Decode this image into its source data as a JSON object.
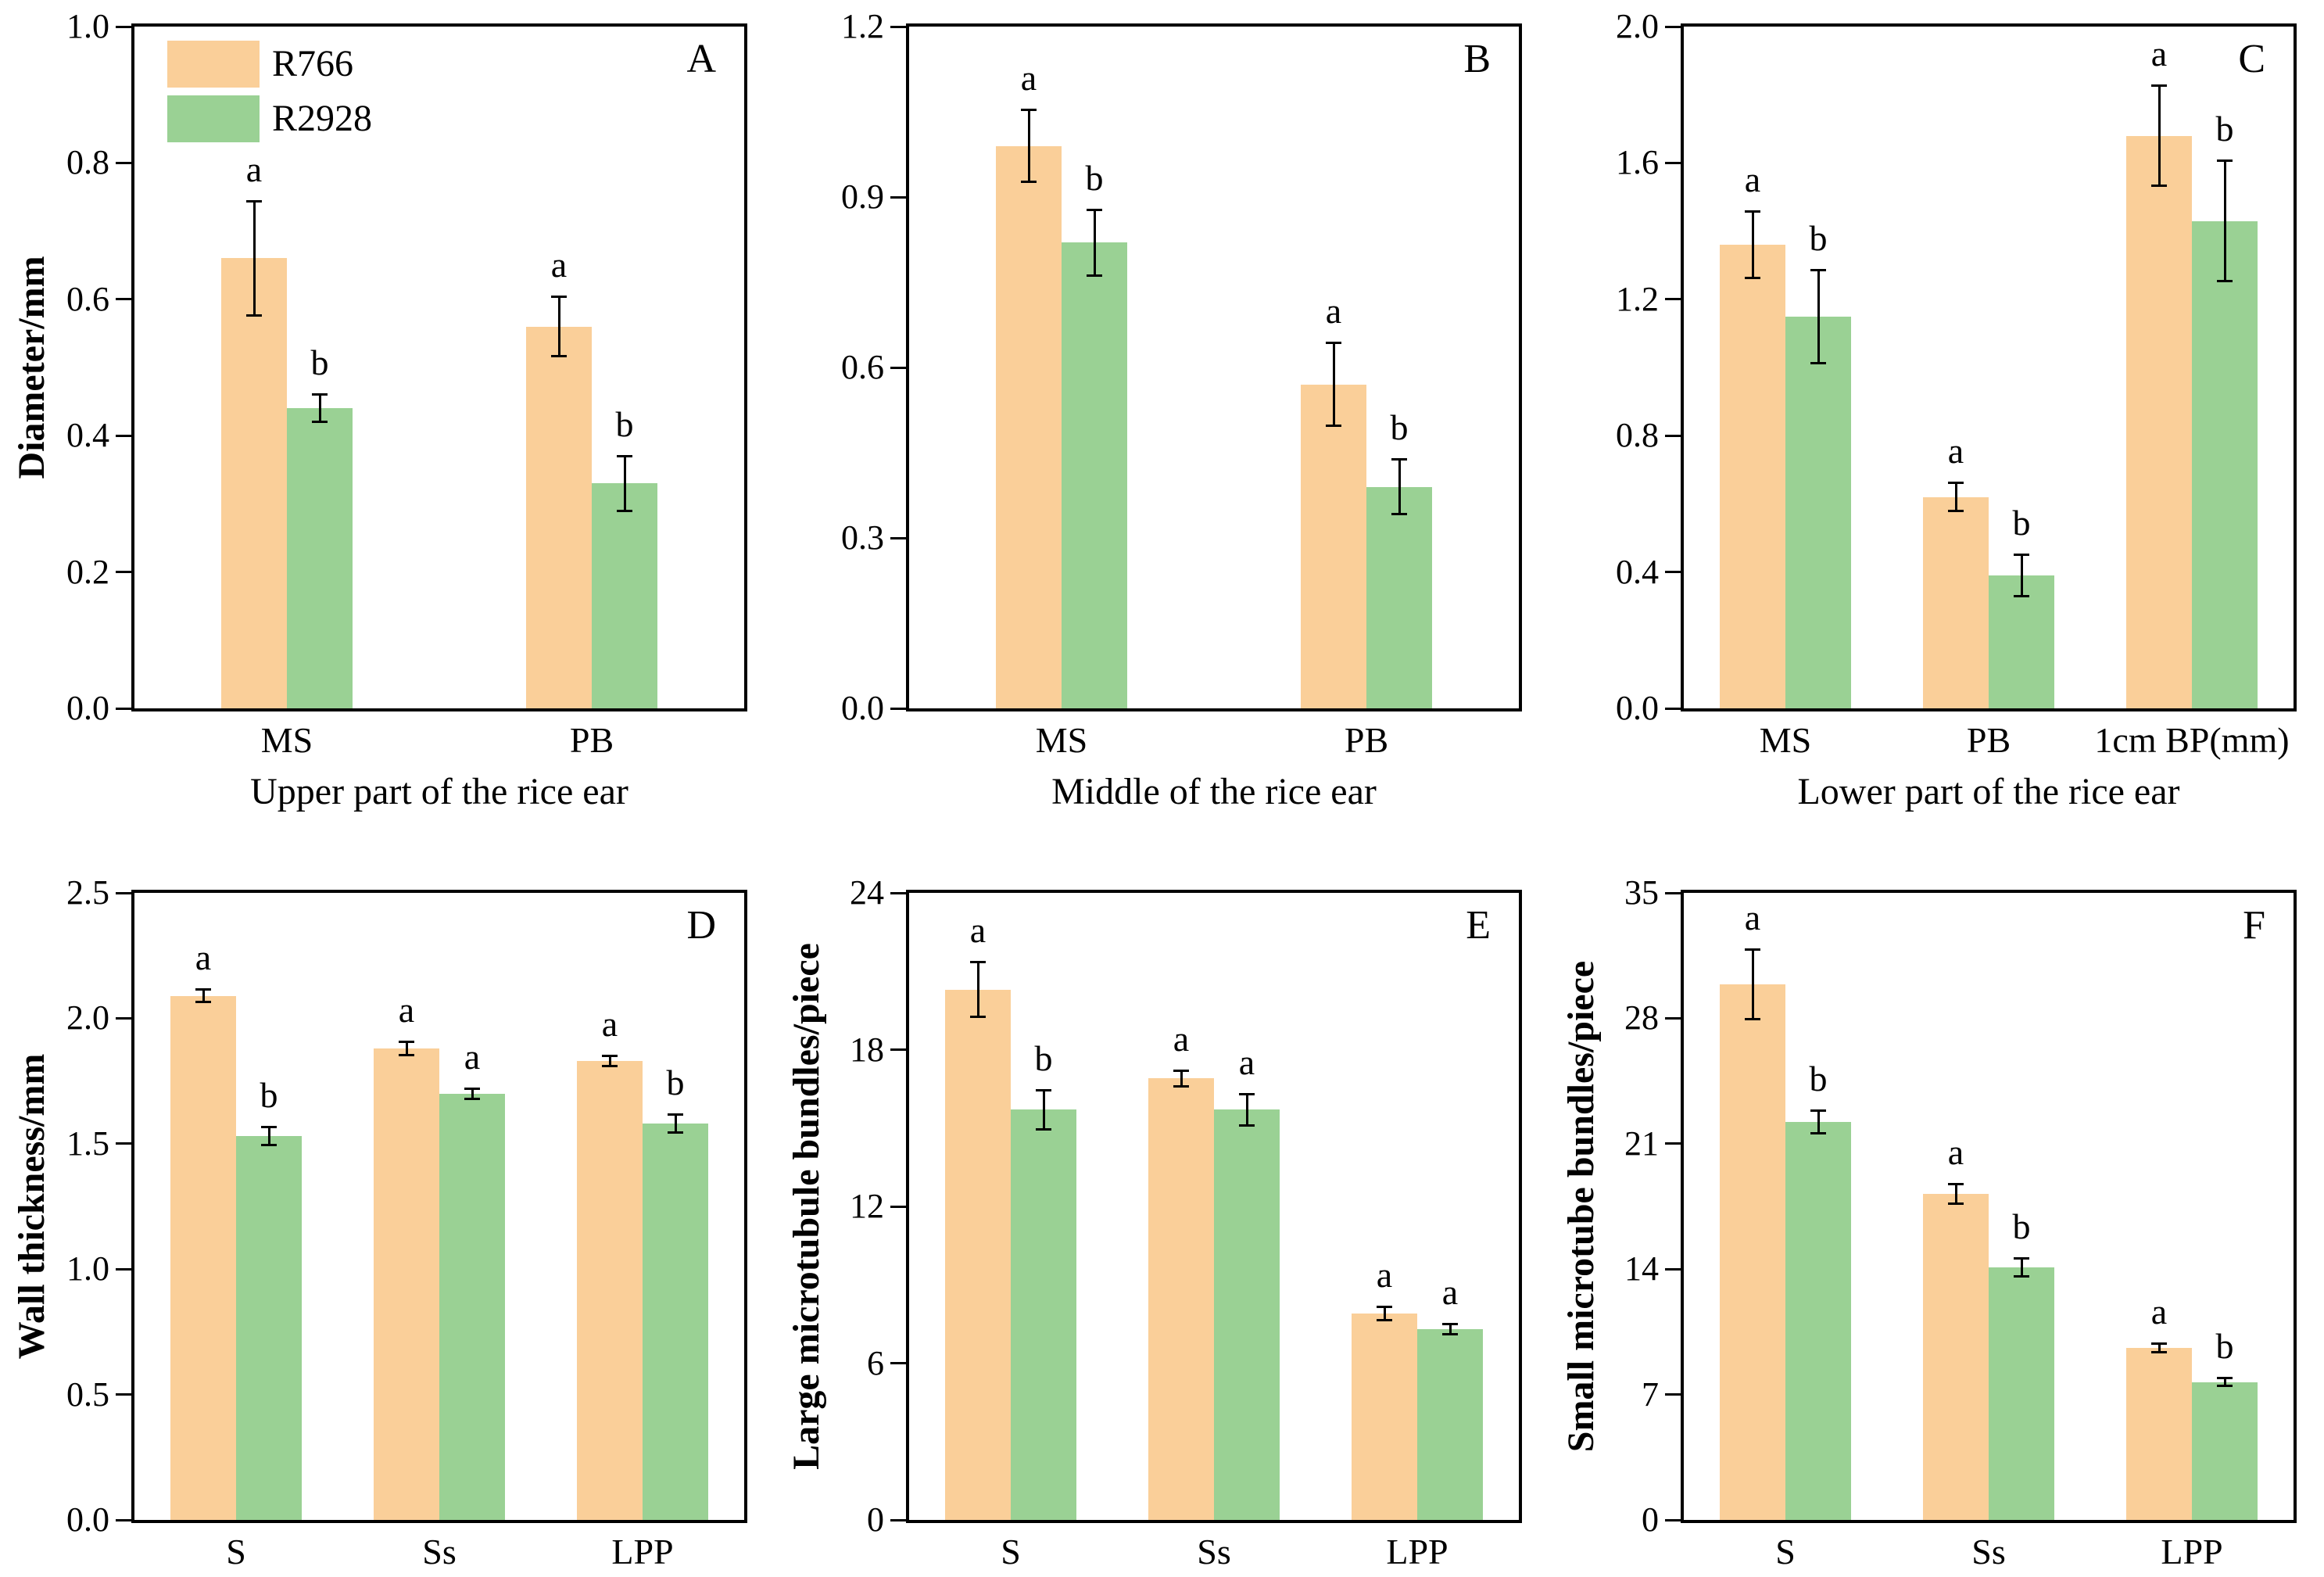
{
  "figure": {
    "background": "#ffffff",
    "frame_color": "#000000",
    "text_color": "#000000",
    "legend": {
      "position": "top-left-panel-A",
      "items": [
        {
          "label": "R766",
          "color": "#FACF99"
        },
        {
          "label": "R2928",
          "color": "#9AD194"
        }
      ]
    }
  },
  "chart_data": [
    {
      "type": "bar",
      "panel_letter": "A",
      "ylabel": "Diameter/mm",
      "xlabel": "Upper part of the rice ear",
      "ylim": [
        0,
        1.0
      ],
      "ytick_labels": [
        "0.0",
        "0.2",
        "0.4",
        "0.6",
        "0.8",
        "1.0"
      ],
      "categories": [
        "MS",
        "PB"
      ],
      "grid": false,
      "show_legend": true,
      "series": [
        {
          "name": "R766",
          "color": "#FACF99",
          "values": [
            0.66,
            0.56
          ],
          "errors": [
            0.085,
            0.045
          ],
          "sig_letters": [
            "a",
            "a"
          ]
        },
        {
          "name": "R2928",
          "color": "#9AD194",
          "values": [
            0.44,
            0.33
          ],
          "errors": [
            0.022,
            0.042
          ],
          "sig_letters": [
            "b",
            "b"
          ]
        }
      ]
    },
    {
      "type": "bar",
      "panel_letter": "B",
      "ylabel": "",
      "xlabel": "Middle of the rice ear",
      "ylim": [
        0,
        1.2
      ],
      "ytick_labels": [
        "0.0",
        "0.3",
        "0.6",
        "0.9",
        "1.2"
      ],
      "categories": [
        "MS",
        "PB"
      ],
      "grid": false,
      "show_legend": false,
      "series": [
        {
          "name": "R766",
          "color": "#FACF99",
          "values": [
            0.99,
            0.57
          ],
          "errors": [
            0.065,
            0.075
          ],
          "sig_letters": [
            "a",
            "a"
          ]
        },
        {
          "name": "R2928",
          "color": "#9AD194",
          "values": [
            0.82,
            0.39
          ],
          "errors": [
            0.06,
            0.05
          ],
          "sig_letters": [
            "b",
            "b"
          ]
        }
      ]
    },
    {
      "type": "bar",
      "panel_letter": "C",
      "ylabel": "",
      "xlabel": "Lower part of the rice ear",
      "ylim": [
        0,
        2.0
      ],
      "ytick_labels": [
        "0.0",
        "0.4",
        "0.8",
        "1.2",
        "1.6",
        "2.0"
      ],
      "categories": [
        "MS",
        "PB",
        "1cm BP(mm)"
      ],
      "grid": false,
      "show_legend": false,
      "series": [
        {
          "name": "R766",
          "color": "#FACF99",
          "values": [
            1.36,
            0.62,
            1.68
          ],
          "errors": [
            0.1,
            0.045,
            0.15
          ],
          "sig_letters": [
            "a",
            "a",
            "a"
          ]
        },
        {
          "name": "R2928",
          "color": "#9AD194",
          "values": [
            1.15,
            0.39,
            1.43
          ],
          "errors": [
            0.14,
            0.065,
            0.18
          ],
          "sig_letters": [
            "b",
            "b",
            "b"
          ]
        }
      ]
    },
    {
      "type": "bar",
      "panel_letter": "D",
      "ylabel": "Wall thickness/mm",
      "xlabel": "",
      "ylim": [
        0,
        2.5
      ],
      "ytick_labels": [
        "0.0",
        "0.5",
        "1.0",
        "1.5",
        "2.0",
        "2.5"
      ],
      "categories": [
        "S",
        "Ss",
        "LPP"
      ],
      "grid": false,
      "show_legend": false,
      "series": [
        {
          "name": "R766",
          "color": "#FACF99",
          "values": [
            2.09,
            1.88,
            1.83
          ],
          "errors": [
            0.03,
            0.03,
            0.025
          ],
          "sig_letters": [
            "a",
            "a",
            "a"
          ]
        },
        {
          "name": "R2928",
          "color": "#9AD194",
          "values": [
            1.53,
            1.7,
            1.58
          ],
          "errors": [
            0.04,
            0.025,
            0.04
          ],
          "sig_letters": [
            "b",
            "a",
            "b"
          ]
        }
      ]
    },
    {
      "type": "bar",
      "panel_letter": "E",
      "ylabel": "Large microtubule bundles/piece",
      "xlabel": "",
      "ylim": [
        0,
        24
      ],
      "ytick_labels": [
        "0",
        "6",
        "12",
        "18",
        "24"
      ],
      "categories": [
        "S",
        "Ss",
        "LPP"
      ],
      "grid": false,
      "show_legend": false,
      "series": [
        {
          "name": "R766",
          "color": "#FACF99",
          "values": [
            20.3,
            16.9,
            7.9
          ],
          "errors": [
            1.1,
            0.35,
            0.3
          ],
          "sig_letters": [
            "a",
            "a",
            "a"
          ]
        },
        {
          "name": "R2928",
          "color": "#9AD194",
          "values": [
            15.7,
            15.7,
            7.3
          ],
          "errors": [
            0.8,
            0.65,
            0.25
          ],
          "sig_letters": [
            "b",
            "a",
            "a"
          ]
        }
      ]
    },
    {
      "type": "bar",
      "panel_letter": "F",
      "ylabel": "Small microtube bundles/piece",
      "xlabel": "",
      "ylim": [
        0,
        35
      ],
      "ytick_labels": [
        "0",
        "7",
        "14",
        "21",
        "28",
        "35"
      ],
      "categories": [
        "S",
        "Ss",
        "LPP"
      ],
      "grid": false,
      "show_legend": false,
      "series": [
        {
          "name": "R766",
          "color": "#FACF99",
          "values": [
            29.9,
            18.2,
            9.6
          ],
          "errors": [
            2.0,
            0.6,
            0.3
          ],
          "sig_letters": [
            "a",
            "a",
            "a"
          ]
        },
        {
          "name": "R2928",
          "color": "#9AD194",
          "values": [
            22.2,
            14.1,
            7.7
          ],
          "errors": [
            0.7,
            0.55,
            0.3
          ],
          "sig_letters": [
            "b",
            "b",
            "b"
          ]
        }
      ]
    }
  ]
}
